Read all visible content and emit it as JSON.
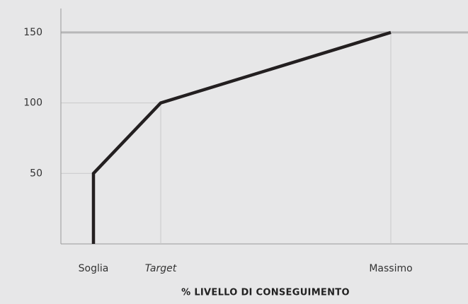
{
  "chart_data": {
    "type": "line",
    "x_label": "% LIVELLO DI CONSEGUIMENTO",
    "x": [
      "Soglia",
      "Soglia",
      "Target",
      "Massimo"
    ],
    "series": [
      {
        "color": "#231f20",
        "values": [
          0,
          50,
          100,
          150
        ]
      }
    ],
    "ylim": [
      0,
      167
    ],
    "yticks": [
      50,
      100,
      150
    ]
  }
}
